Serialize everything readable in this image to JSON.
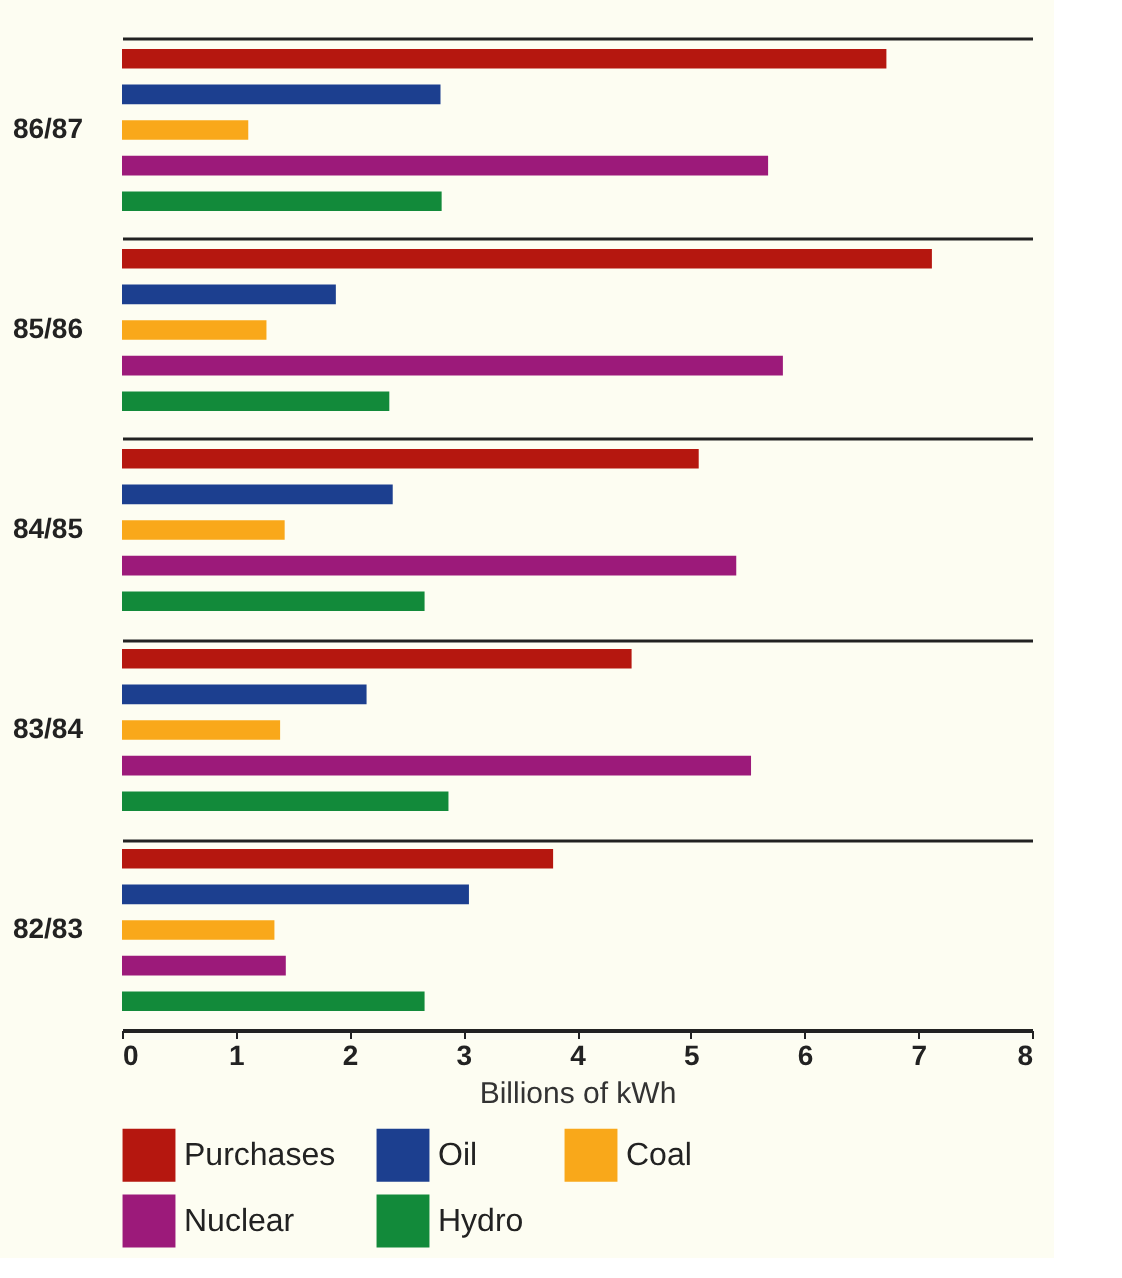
{
  "chart_data": {
    "type": "bar",
    "orientation": "horizontal",
    "xlabel": "Billions of kWh",
    "categories": [
      "86/87",
      "85/86",
      "84/85",
      "83/84",
      "82/83"
    ],
    "series": [
      {
        "name": "Purchases",
        "color": "#b5170f",
        "values": [
          6.72,
          7.12,
          5.07,
          4.48,
          3.79
        ]
      },
      {
        "name": "Oil",
        "color": "#1c3f8f",
        "values": [
          2.8,
          1.88,
          2.38,
          2.15,
          3.05
        ]
      },
      {
        "name": "Coal",
        "color": "#f9a81a",
        "values": [
          1.11,
          1.27,
          1.43,
          1.39,
          1.34
        ]
      },
      {
        "name": "Nuclear",
        "color": "#9c1a7a",
        "values": [
          5.68,
          5.81,
          5.4,
          5.53,
          1.44
        ]
      },
      {
        "name": "Hydro",
        "color": "#128a3a",
        "values": [
          2.81,
          2.35,
          2.66,
          2.87,
          2.66
        ]
      }
    ],
    "xlim": [
      0,
      8
    ],
    "xticks": [
      0,
      1,
      2,
      3,
      4,
      5,
      6,
      7,
      8
    ],
    "grid": "y",
    "legend": "bottom"
  }
}
